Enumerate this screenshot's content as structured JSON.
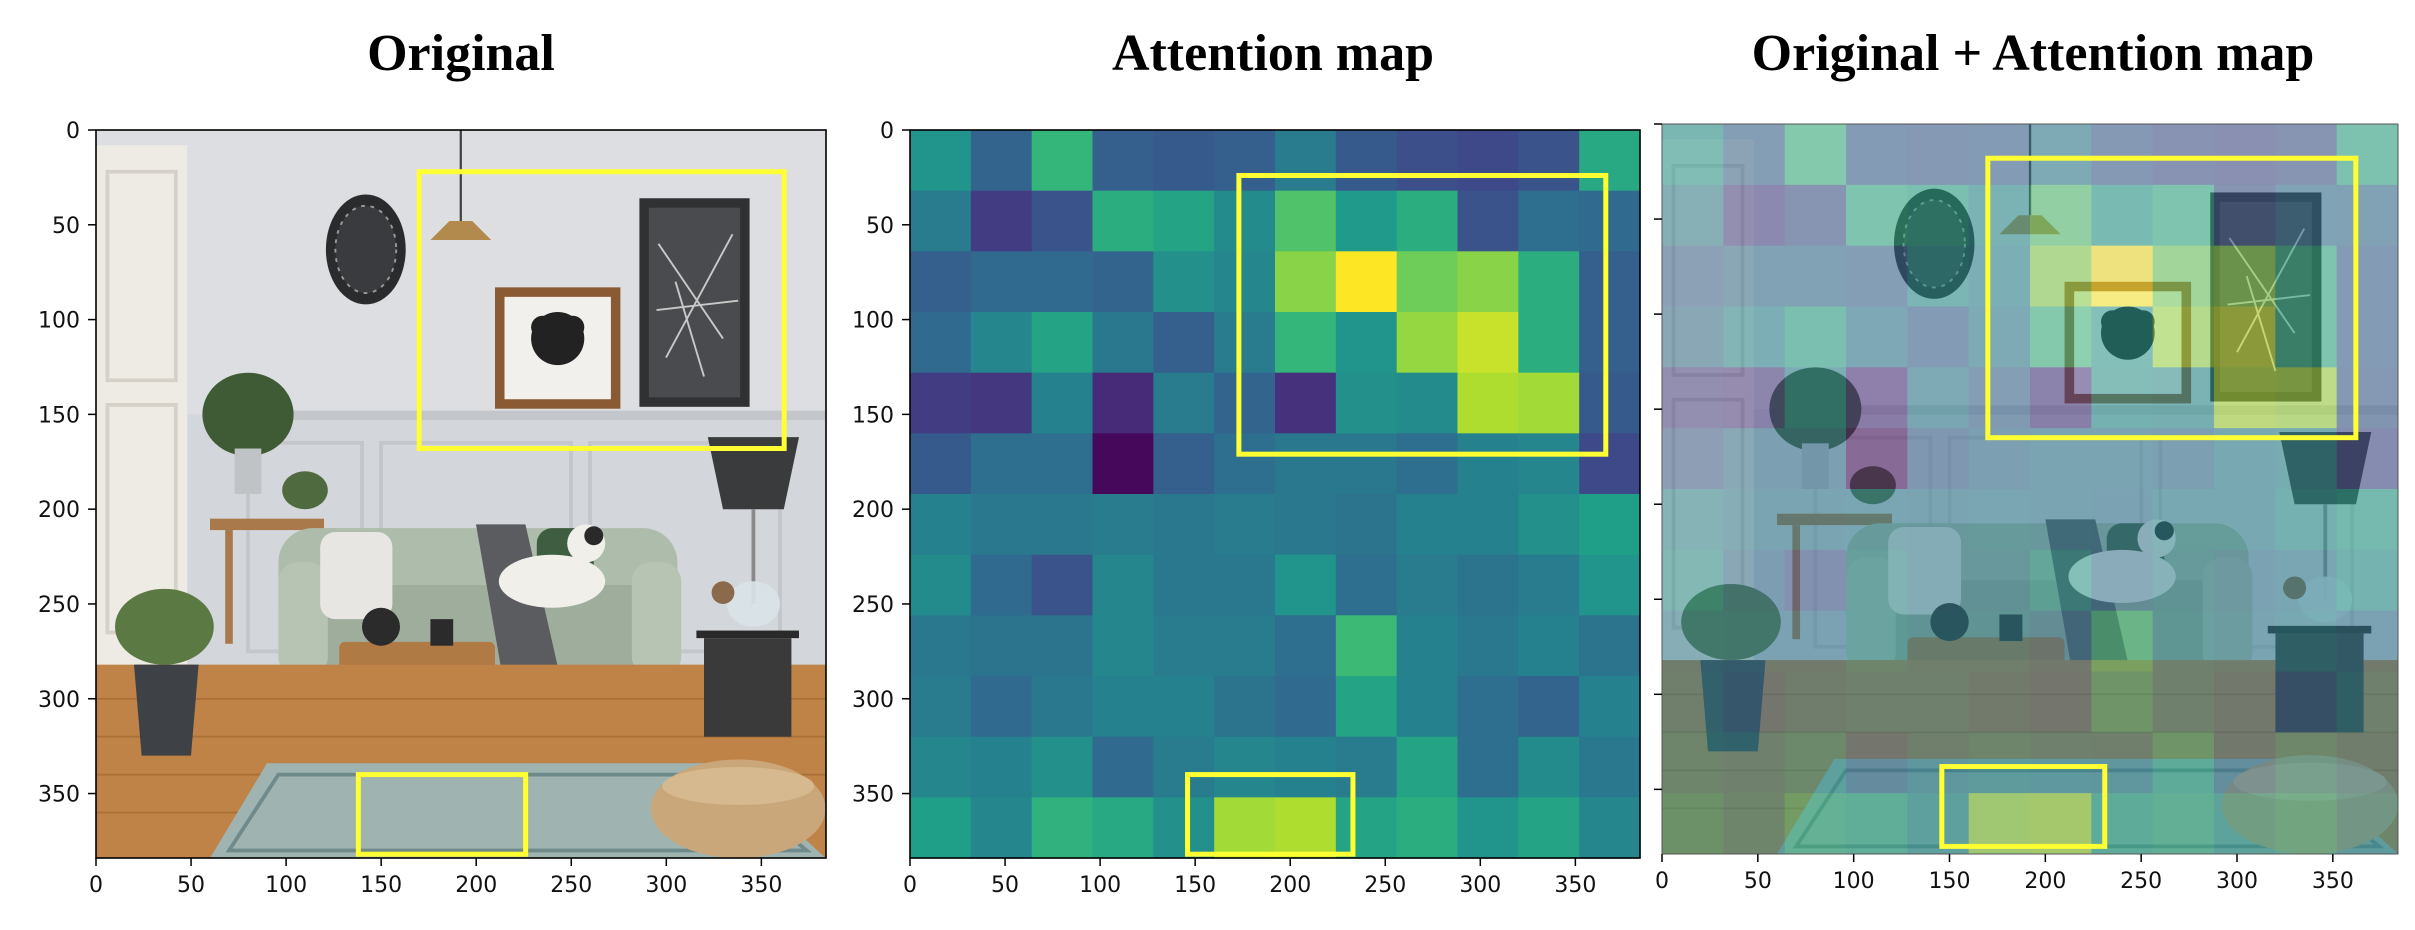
{
  "panels": [
    {
      "title": "Original",
      "kind": "photo"
    },
    {
      "title": "Attention map",
      "kind": "heatmap"
    },
    {
      "title": "Original + Attention map",
      "kind": "overlay"
    }
  ],
  "axis": {
    "x_ticks": [
      0,
      50,
      100,
      150,
      200,
      250,
      300,
      350
    ],
    "y_ticks": [
      0,
      50,
      100,
      150,
      200,
      250,
      300,
      350
    ],
    "range": [
      0,
      384
    ]
  },
  "highlight_color": "#ffff33",
  "boxes": {
    "Original": [
      {
        "x0": 170,
        "y0": 22,
        "x1": 362,
        "y1": 168
      },
      {
        "x0": 138,
        "y0": 340,
        "x1": 226,
        "y1": 382
      }
    ],
    "Attention map": [
      {
        "x0": 173,
        "y0": 24,
        "x1": 366,
        "y1": 171
      },
      {
        "x0": 146,
        "y0": 340,
        "x1": 233,
        "y1": 382
      }
    ],
    "Original + Attention map": [
      {
        "x0": 170,
        "y0": 18,
        "x1": 362,
        "y1": 165
      },
      {
        "x0": 146,
        "y0": 338,
        "x1": 231,
        "y1": 380
      }
    ]
  },
  "chart_data": {
    "type": "heatmap",
    "title": "Attention map",
    "grid_size": [
      12,
      12
    ],
    "cell_size": 32,
    "xlim": [
      0,
      384
    ],
    "ylim": [
      384,
      0
    ],
    "colormap": "viridis",
    "values": [
      [
        0.52,
        0.32,
        0.66,
        0.3,
        0.28,
        0.3,
        0.42,
        0.28,
        0.24,
        0.22,
        0.26,
        0.6
      ],
      [
        0.42,
        0.18,
        0.26,
        0.62,
        0.58,
        0.48,
        0.72,
        0.54,
        0.62,
        0.26,
        0.36,
        0.34
      ],
      [
        0.3,
        0.34,
        0.34,
        0.32,
        0.5,
        0.46,
        0.82,
        1.0,
        0.78,
        0.82,
        0.62,
        0.3
      ],
      [
        0.34,
        0.46,
        0.58,
        0.4,
        0.3,
        0.42,
        0.66,
        0.52,
        0.84,
        0.92,
        0.62,
        0.3
      ],
      [
        0.18,
        0.16,
        0.44,
        0.12,
        0.42,
        0.32,
        0.14,
        0.5,
        0.48,
        0.88,
        0.86,
        0.28
      ],
      [
        0.28,
        0.36,
        0.36,
        0.02,
        0.3,
        0.36,
        0.4,
        0.4,
        0.36,
        0.44,
        0.46,
        0.22
      ],
      [
        0.44,
        0.4,
        0.4,
        0.42,
        0.4,
        0.42,
        0.4,
        0.38,
        0.44,
        0.44,
        0.5,
        0.56
      ],
      [
        0.48,
        0.34,
        0.26,
        0.46,
        0.4,
        0.4,
        0.52,
        0.36,
        0.42,
        0.38,
        0.42,
        0.52
      ],
      [
        0.4,
        0.38,
        0.38,
        0.46,
        0.42,
        0.42,
        0.36,
        0.68,
        0.44,
        0.4,
        0.44,
        0.38
      ],
      [
        0.42,
        0.34,
        0.4,
        0.44,
        0.44,
        0.38,
        0.34,
        0.58,
        0.44,
        0.36,
        0.32,
        0.44
      ],
      [
        0.46,
        0.44,
        0.5,
        0.34,
        0.42,
        0.46,
        0.44,
        0.42,
        0.58,
        0.36,
        0.48,
        0.4
      ],
      [
        0.56,
        0.46,
        0.64,
        0.6,
        0.5,
        0.86,
        0.88,
        0.58,
        0.62,
        0.52,
        0.58,
        0.46
      ]
    ]
  }
}
